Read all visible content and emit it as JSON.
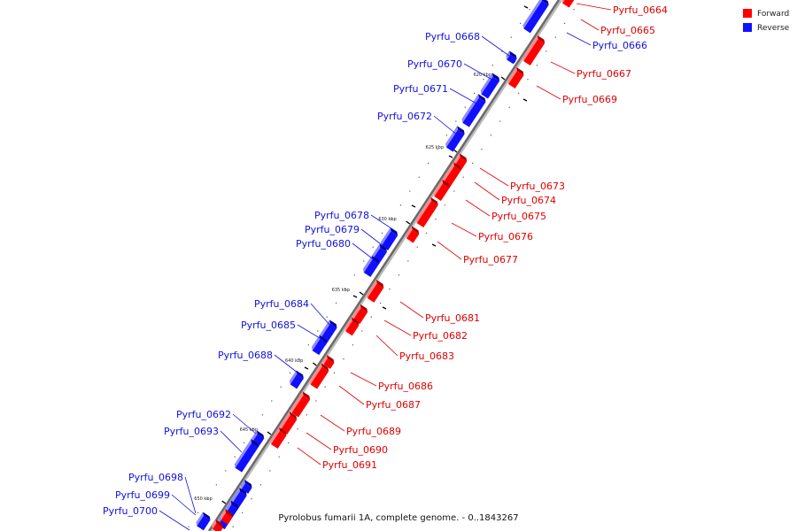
{
  "caption": "Pyrolobus fumarii 1A, complete genome. - 0..1843267",
  "legend": {
    "forward": {
      "label": "Forward",
      "color": "#ff0000"
    },
    "reverse": {
      "label": "Reverse",
      "color": "#1010ff"
    }
  },
  "ticks": [
    "620 kbp",
    "625 kbp",
    "630 kbp",
    "635 kbp",
    "640 kbp",
    "645 kbp",
    "650 kbp"
  ],
  "genes": [
    {
      "name": "Pyrfu_0664",
      "strand": "forward"
    },
    {
      "name": "Pyrfu_0665",
      "strand": "forward"
    },
    {
      "name": "Pyrfu_0666",
      "strand": "reverse"
    },
    {
      "name": "Pyrfu_0667",
      "strand": "forward"
    },
    {
      "name": "Pyrfu_0668",
      "strand": "reverse"
    },
    {
      "name": "Pyrfu_0669",
      "strand": "forward"
    },
    {
      "name": "Pyrfu_0670",
      "strand": "reverse"
    },
    {
      "name": "Pyrfu_0671",
      "strand": "reverse"
    },
    {
      "name": "Pyrfu_0672",
      "strand": "reverse"
    },
    {
      "name": "Pyrfu_0673",
      "strand": "forward"
    },
    {
      "name": "Pyrfu_0674",
      "strand": "forward"
    },
    {
      "name": "Pyrfu_0675",
      "strand": "forward"
    },
    {
      "name": "Pyrfu_0676",
      "strand": "forward"
    },
    {
      "name": "Pyrfu_0677",
      "strand": "forward"
    },
    {
      "name": "Pyrfu_0678",
      "strand": "reverse"
    },
    {
      "name": "Pyrfu_0679",
      "strand": "reverse"
    },
    {
      "name": "Pyrfu_0680",
      "strand": "reverse"
    },
    {
      "name": "Pyrfu_0681",
      "strand": "forward"
    },
    {
      "name": "Pyrfu_0682",
      "strand": "forward"
    },
    {
      "name": "Pyrfu_0683",
      "strand": "forward"
    },
    {
      "name": "Pyrfu_0684",
      "strand": "reverse"
    },
    {
      "name": "Pyrfu_0685",
      "strand": "reverse"
    },
    {
      "name": "Pyrfu_0686",
      "strand": "forward"
    },
    {
      "name": "Pyrfu_0687",
      "strand": "forward"
    },
    {
      "name": "Pyrfu_0688",
      "strand": "reverse"
    },
    {
      "name": "Pyrfu_0689",
      "strand": "forward"
    },
    {
      "name": "Pyrfu_0690",
      "strand": "forward"
    },
    {
      "name": "Pyrfu_0691",
      "strand": "forward"
    },
    {
      "name": "Pyrfu_0692",
      "strand": "reverse"
    },
    {
      "name": "Pyrfu_0693",
      "strand": "reverse"
    },
    {
      "name": "Pyrfu_0698",
      "strand": "reverse"
    },
    {
      "name": "Pyrfu_0699",
      "strand": "reverse"
    },
    {
      "name": "Pyrfu_0700",
      "strand": "reverse"
    }
  ]
}
